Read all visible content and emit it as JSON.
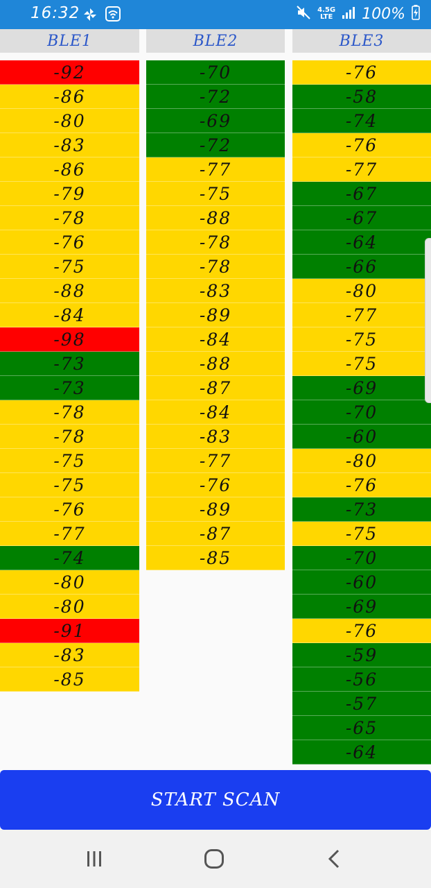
{
  "status": {
    "time": "16:32",
    "network_top": "4.5G",
    "network_bottom": "LTE",
    "battery": "100%"
  },
  "columns": [
    {
      "header": "BLE1",
      "cells": [
        {
          "v": "-92",
          "c": "red"
        },
        {
          "v": "-86",
          "c": "yellow"
        },
        {
          "v": "-80",
          "c": "yellow"
        },
        {
          "v": "-83",
          "c": "yellow"
        },
        {
          "v": "-86",
          "c": "yellow"
        },
        {
          "v": "-79",
          "c": "yellow"
        },
        {
          "v": "-78",
          "c": "yellow"
        },
        {
          "v": "-76",
          "c": "yellow"
        },
        {
          "v": "-75",
          "c": "yellow"
        },
        {
          "v": "-88",
          "c": "yellow"
        },
        {
          "v": "-84",
          "c": "yellow"
        },
        {
          "v": "-98",
          "c": "red"
        },
        {
          "v": "-73",
          "c": "green"
        },
        {
          "v": "-73",
          "c": "green"
        },
        {
          "v": "-78",
          "c": "yellow"
        },
        {
          "v": "-78",
          "c": "yellow"
        },
        {
          "v": "-75",
          "c": "yellow"
        },
        {
          "v": "-75",
          "c": "yellow"
        },
        {
          "v": "-76",
          "c": "yellow"
        },
        {
          "v": "-77",
          "c": "yellow"
        },
        {
          "v": "-74",
          "c": "green"
        },
        {
          "v": "-80",
          "c": "yellow"
        },
        {
          "v": "-80",
          "c": "yellow"
        },
        {
          "v": "-91",
          "c": "red"
        },
        {
          "v": "-83",
          "c": "yellow"
        },
        {
          "v": "-85",
          "c": "yellow"
        }
      ]
    },
    {
      "header": "BLE2",
      "cells": [
        {
          "v": "-70",
          "c": "green"
        },
        {
          "v": "-72",
          "c": "green"
        },
        {
          "v": "-69",
          "c": "green"
        },
        {
          "v": "-72",
          "c": "green"
        },
        {
          "v": "-77",
          "c": "yellow"
        },
        {
          "v": "-75",
          "c": "yellow"
        },
        {
          "v": "-88",
          "c": "yellow"
        },
        {
          "v": "-78",
          "c": "yellow"
        },
        {
          "v": "-78",
          "c": "yellow"
        },
        {
          "v": "-83",
          "c": "yellow"
        },
        {
          "v": "-89",
          "c": "yellow"
        },
        {
          "v": "-84",
          "c": "yellow"
        },
        {
          "v": "-88",
          "c": "yellow"
        },
        {
          "v": "-87",
          "c": "yellow"
        },
        {
          "v": "-84",
          "c": "yellow"
        },
        {
          "v": "-83",
          "c": "yellow"
        },
        {
          "v": "-77",
          "c": "yellow"
        },
        {
          "v": "-76",
          "c": "yellow"
        },
        {
          "v": "-89",
          "c": "yellow"
        },
        {
          "v": "-87",
          "c": "yellow"
        },
        {
          "v": "-85",
          "c": "yellow"
        }
      ]
    },
    {
      "header": "BLE3",
      "cells": [
        {
          "v": "-76",
          "c": "yellow"
        },
        {
          "v": "-58",
          "c": "green"
        },
        {
          "v": "-74",
          "c": "green"
        },
        {
          "v": "-76",
          "c": "yellow"
        },
        {
          "v": "-77",
          "c": "yellow"
        },
        {
          "v": "-67",
          "c": "green"
        },
        {
          "v": "-67",
          "c": "green"
        },
        {
          "v": "-64",
          "c": "green"
        },
        {
          "v": "-66",
          "c": "green"
        },
        {
          "v": "-80",
          "c": "yellow"
        },
        {
          "v": "-77",
          "c": "yellow"
        },
        {
          "v": "-75",
          "c": "yellow"
        },
        {
          "v": "-75",
          "c": "yellow"
        },
        {
          "v": "-69",
          "c": "green"
        },
        {
          "v": "-70",
          "c": "green"
        },
        {
          "v": "-60",
          "c": "green"
        },
        {
          "v": "-80",
          "c": "yellow"
        },
        {
          "v": "-76",
          "c": "yellow"
        },
        {
          "v": "-73",
          "c": "green"
        },
        {
          "v": "-75",
          "c": "yellow"
        },
        {
          "v": "-70",
          "c": "green"
        },
        {
          "v": "-60",
          "c": "green"
        },
        {
          "v": "-69",
          "c": "green"
        },
        {
          "v": "-76",
          "c": "yellow"
        },
        {
          "v": "-59",
          "c": "green"
        },
        {
          "v": "-56",
          "c": "green"
        },
        {
          "v": "-57",
          "c": "green"
        },
        {
          "v": "-65",
          "c": "green"
        },
        {
          "v": "-64",
          "c": "green"
        }
      ]
    }
  ],
  "button": {
    "label": "START SCAN"
  },
  "colors": {
    "yellow": "#ffd700",
    "green": "#008000",
    "red": "#ff0000",
    "accent": "#1a3ef0",
    "statusbar": "#1f86d8"
  },
  "nav": {
    "recents_icon": "recents-icon",
    "home_icon": "home-icon",
    "back_icon": "back-icon"
  }
}
